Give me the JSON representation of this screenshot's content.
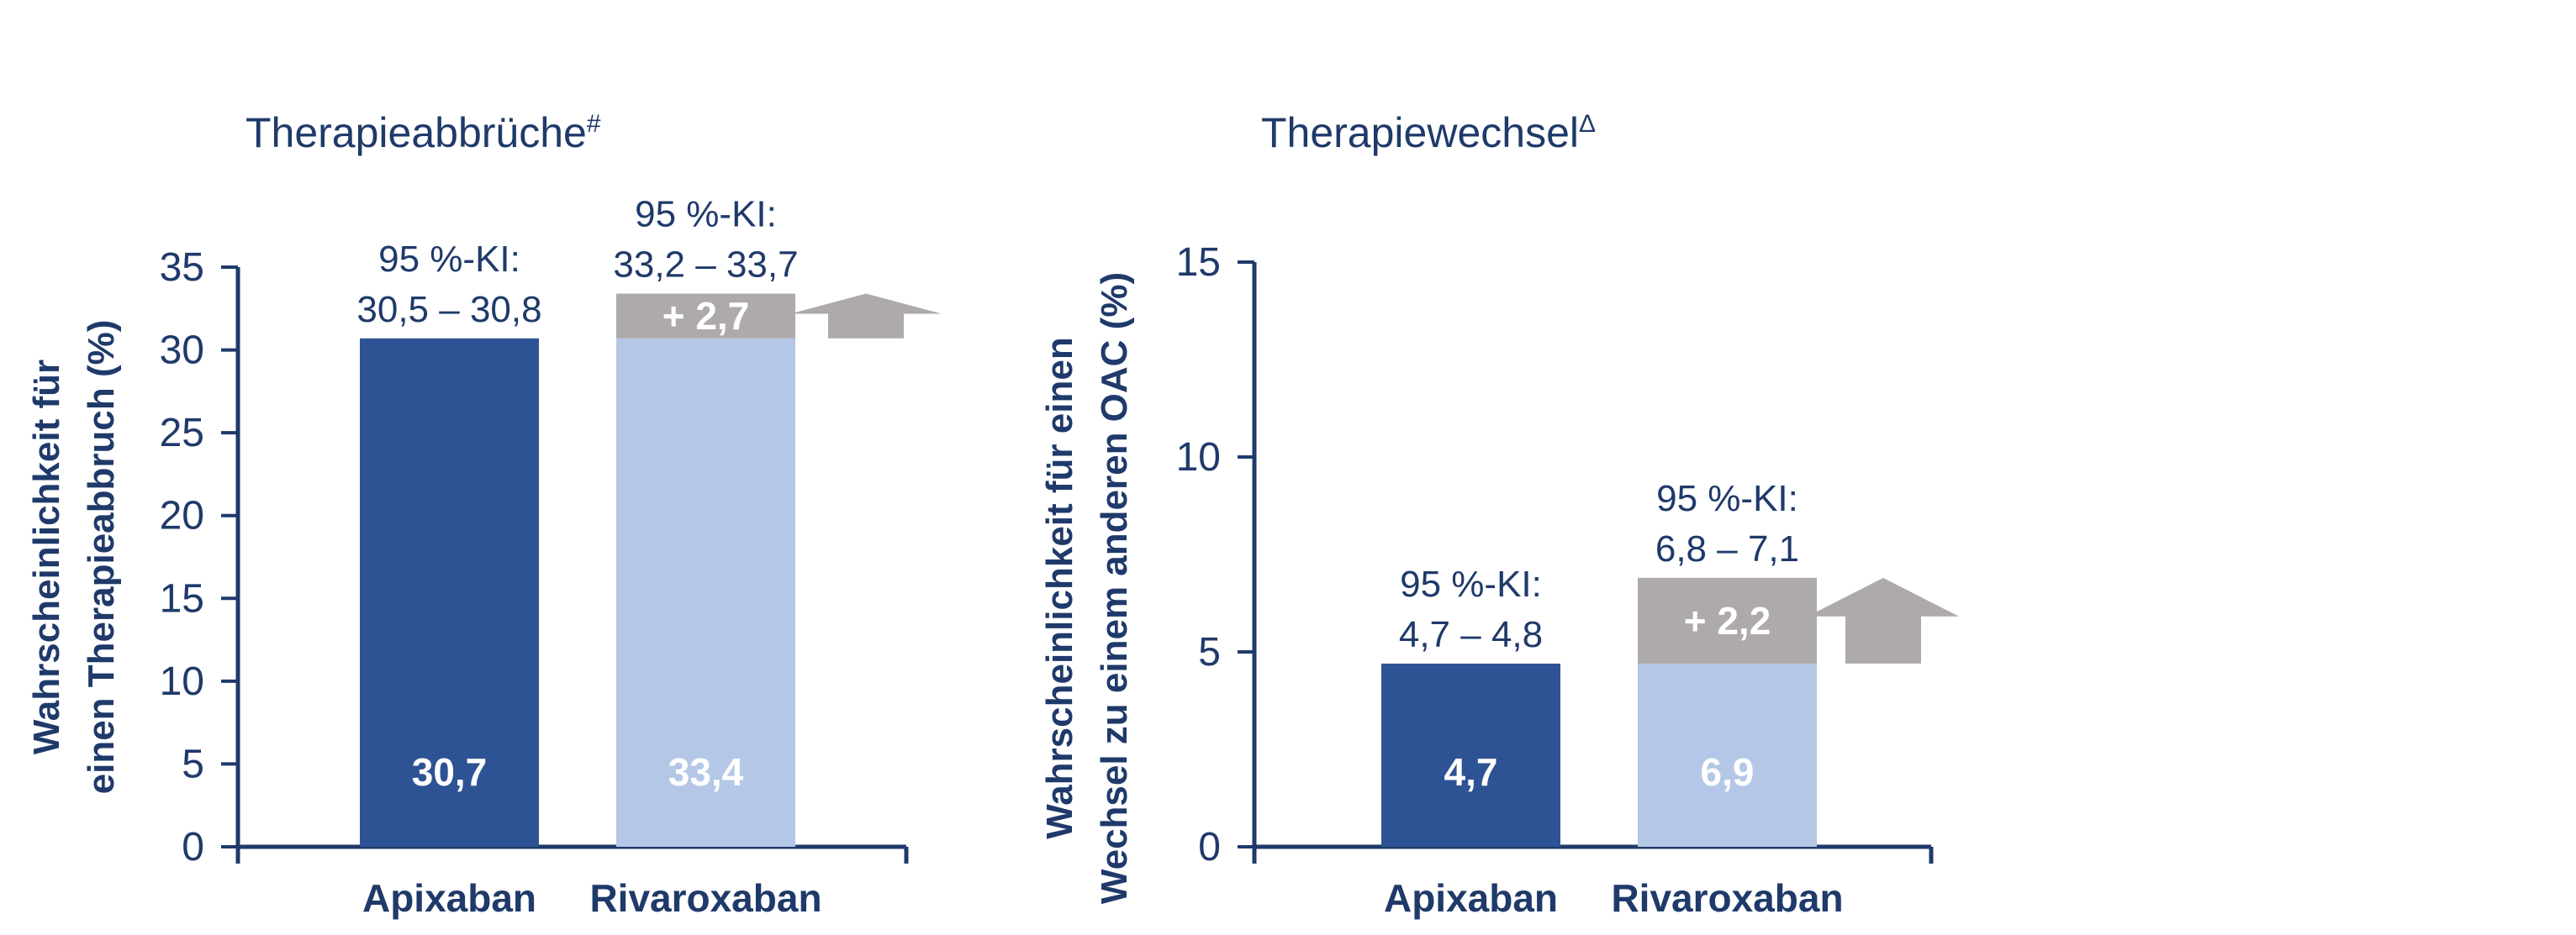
{
  "chart_data": [
    {
      "type": "bar",
      "title": "Therapieabbrüche",
      "title_superscript": "#",
      "ylabel_lines": [
        "Wahrscheinlichkeit für",
        "einen Therapieabbruch (%)"
      ],
      "ylim": [
        0,
        35
      ],
      "yticks": [
        0,
        5,
        10,
        15,
        20,
        25,
        30,
        35
      ],
      "categories": [
        "Apixaban",
        "Rivaroxaban"
      ],
      "values": [
        30.7,
        33.4
      ],
      "value_labels": [
        "30,7",
        "33,4"
      ],
      "ci_header": [
        "95 %-KI:",
        "95 %-KI:"
      ],
      "ci_values": [
        "30,5 – 30,8",
        "33,2 – 33,7"
      ],
      "difference": {
        "base": 30.7,
        "value": 2.7,
        "label": "+ 2,7"
      },
      "colors": {
        "bar1": "#2e5394",
        "bar2": "#b4c7e7",
        "difference": "#aeaaaa",
        "axis": "#1f3a6a"
      },
      "grid": false
    },
    {
      "type": "bar",
      "title": "Therapiewechsel",
      "title_superscript": "Δ",
      "ylabel_lines": [
        "Wahrscheinlichkeit für einen",
        "Wechsel zu einem anderen OAC (%)"
      ],
      "ylim": [
        0,
        15
      ],
      "yticks": [
        0,
        5,
        10,
        15
      ],
      "categories": [
        "Apixaban",
        "Rivaroxaban"
      ],
      "values": [
        4.7,
        6.9
      ],
      "value_labels": [
        "4,7",
        "6,9"
      ],
      "ci_header": [
        "95 %-KI:",
        "95 %-KI:"
      ],
      "ci_values": [
        "4,7 – 4,8",
        "6,8 – 7,1"
      ],
      "difference": {
        "base": 4.7,
        "value": 2.2,
        "label": "+ 2,2"
      },
      "colors": {
        "bar1": "#2e5394",
        "bar2": "#b4c7e7",
        "difference": "#aeaaaa",
        "axis": "#1f3a6a"
      },
      "grid": false
    }
  ]
}
